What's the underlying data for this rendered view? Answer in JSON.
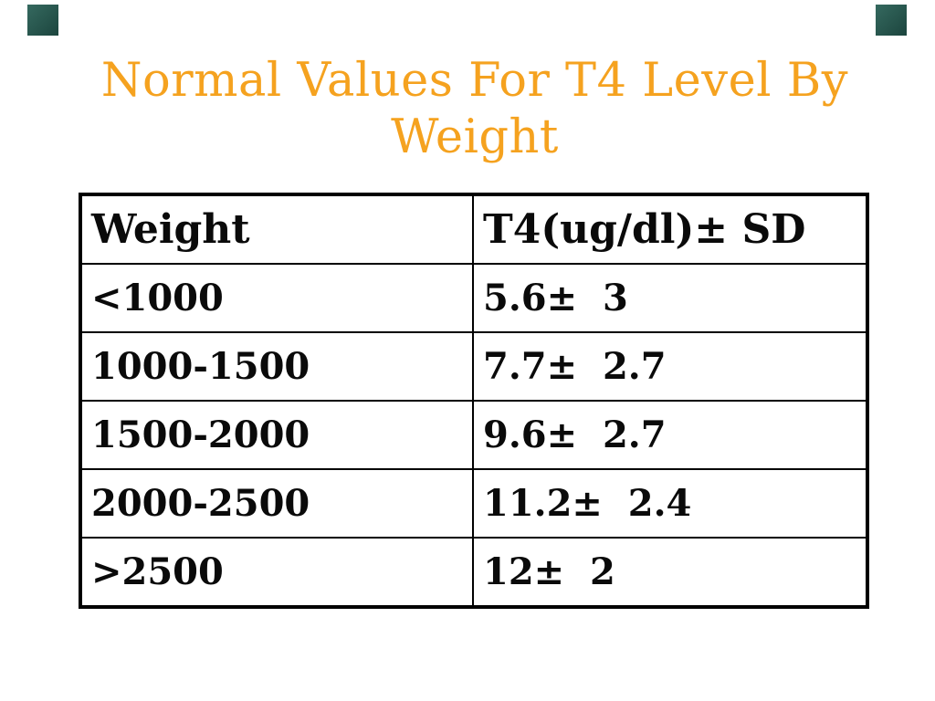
{
  "theme": {
    "background": "#ffffff",
    "title_color": "#f5a21f",
    "text_color": "#0a0a0a",
    "border_color": "#000000",
    "accent_color": "#35695f",
    "accent_color_dark": "#1c453e"
  },
  "title": {
    "line1": "Normal Values For T4 Level By",
    "line2": "Weight"
  },
  "table": {
    "columns": [
      "Weight",
      "T4(ug/dl)± SD"
    ],
    "rows": [
      {
        "weight": "<1000",
        "t4": "5.6±  3"
      },
      {
        "weight": "1000-1500",
        "t4": "7.7±  2.7"
      },
      {
        "weight": "1500-2000",
        "t4": "9.6±  2.7"
      },
      {
        "weight": "2000-2500",
        "t4": "11.2±  2.4"
      },
      {
        "weight": ">2500",
        "t4": "12±  2"
      }
    ]
  }
}
